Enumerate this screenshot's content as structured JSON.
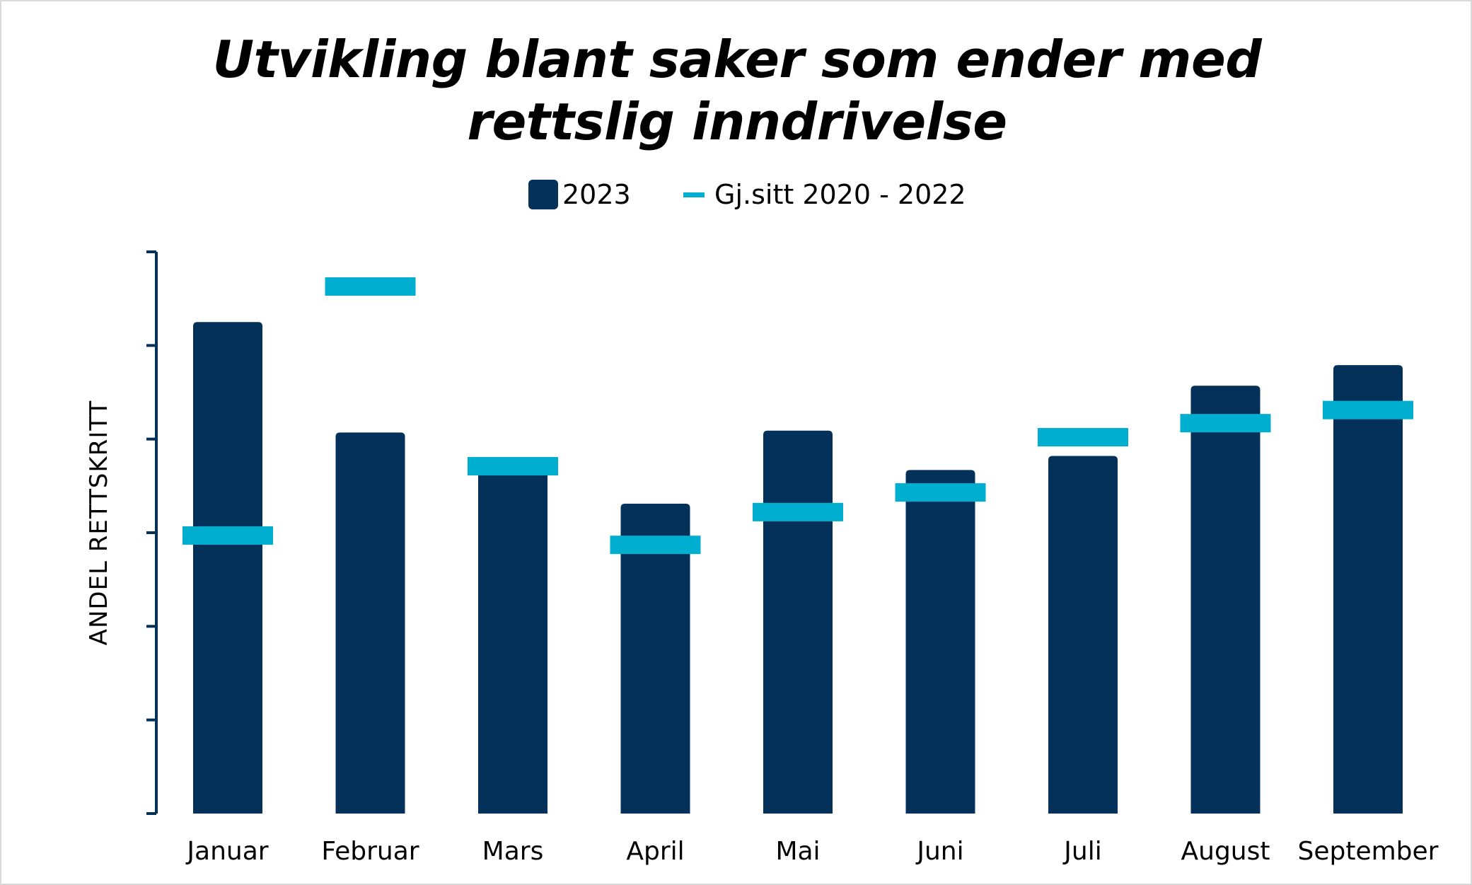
{
  "chart_data": {
    "type": "bar",
    "title": "Utvikling blant saker som ender med rettslig inndrivelse",
    "xlabel": "",
    "ylabel": "ANDEL RETTSKRITT",
    "ylim": [
      0,
      6
    ],
    "y_tick_labels_shown": false,
    "categories": [
      "Januar",
      "Februar",
      "Mars",
      "April",
      "Mai",
      "Juni",
      "Juli",
      "August",
      "September"
    ],
    "series": [
      {
        "name": "2023",
        "type": "bar",
        "color": "#03315a",
        "values": [
          5.25,
          4.07,
          3.7,
          3.31,
          4.09,
          3.67,
          3.82,
          4.57,
          4.79
        ]
      },
      {
        "name": "Gj.sitt 2020 - 2022",
        "type": "marker",
        "color": "#00afcf",
        "values": [
          2.97,
          5.63,
          3.71,
          2.87,
          3.22,
          3.43,
          4.02,
          4.17,
          4.31
        ]
      }
    ],
    "legend_position": "top-center",
    "grid": false
  },
  "colors": {
    "bar": "#03315a",
    "marker": "#00afcf",
    "axis": "#03315a",
    "text": "#000000"
  }
}
